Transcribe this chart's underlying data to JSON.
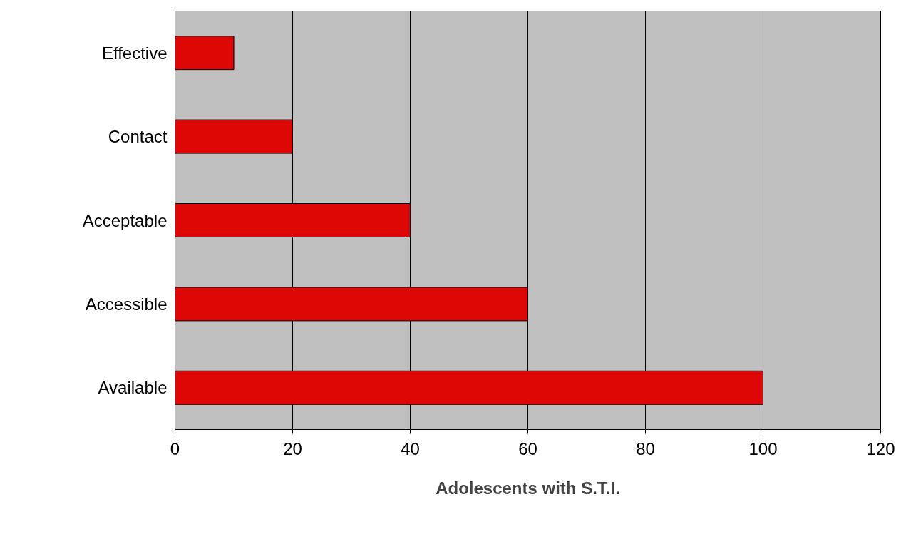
{
  "chart_data": {
    "type": "bar",
    "orientation": "horizontal",
    "xlabel": "Adolescents with S.T.I.",
    "categories": [
      "Effective",
      "Contact",
      "Acceptable",
      "Accessible",
      "Available"
    ],
    "values": [
      10,
      20,
      40,
      60,
      100
    ],
    "color": "#dd0806",
    "xlim": [
      0,
      120
    ],
    "xticks": [
      0,
      20,
      40,
      60,
      80,
      100,
      120
    ],
    "grid": "x"
  }
}
